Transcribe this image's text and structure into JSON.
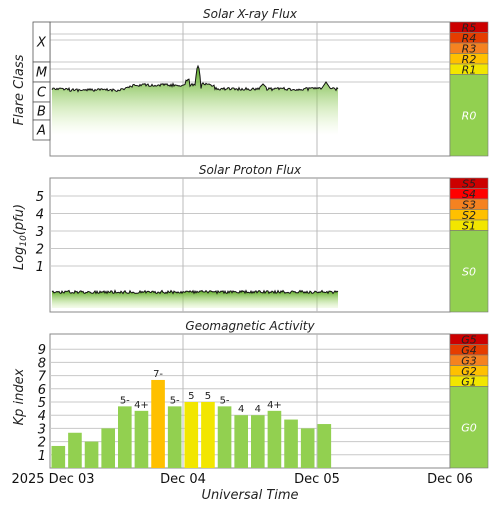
{
  "chart_data": [
    {
      "type": "area",
      "title": "Solar X-ray Flux",
      "ylabel": "Flare Class",
      "flare_classes": [
        "X",
        "M",
        "C",
        "B",
        "A"
      ],
      "scale": [
        {
          "label": "R5",
          "color": "#cc0000"
        },
        {
          "label": "R4",
          "color": "#e53d00"
        },
        {
          "label": "R3",
          "color": "#f58220"
        },
        {
          "label": "R2",
          "color": "#ffc000"
        },
        {
          "label": "R1",
          "color": "#f2e600"
        },
        {
          "label": "R0",
          "color": "#92d050"
        }
      ],
      "series_shape": "flux near low C-class throughout, brief M-class flare spike on Dec 04, small C-class bumps near Dec 05"
    },
    {
      "type": "area",
      "title": "Solar Proton Flux",
      "ylabel": "Log10(pfu)",
      "yticks": [
        "5",
        "4",
        "3",
        "2",
        "1"
      ],
      "ylim": [
        -2,
        6
      ],
      "scale": [
        {
          "label": "S5",
          "color": "#cc0000"
        },
        {
          "label": "S4",
          "color": "#ff0000"
        },
        {
          "label": "S3",
          "color": "#f58220"
        },
        {
          "label": "S2",
          "color": "#ffc000"
        },
        {
          "label": "S1",
          "color": "#f2e600"
        },
        {
          "label": "S0",
          "color": "#92d050"
        }
      ],
      "series_shape": "flat background below level 1"
    },
    {
      "type": "bar",
      "title": "Geomagnetic Activity",
      "ylabel": "Kp index",
      "xlabel": "Universal Time",
      "ylim": [
        0,
        10
      ],
      "yticks": [
        1,
        2,
        3,
        4,
        5,
        6,
        7,
        8,
        9
      ],
      "x_date_labels": [
        "2025 Dec 03",
        "Dec 04",
        "Dec 05",
        "Dec 06"
      ],
      "values": [
        1.67,
        2.67,
        2.0,
        3.0,
        4.67,
        4.33,
        6.67,
        4.67,
        5.0,
        5.0,
        4.67,
        4.0,
        4.0,
        4.33,
        3.67,
        3.0,
        3.33
      ],
      "labels": [
        "",
        "",
        "",
        "",
        "5-",
        "4+",
        "7-",
        "5-",
        "5",
        "5",
        "5-",
        "4",
        "4",
        "4+",
        "",
        "",
        ""
      ],
      "colors": {
        "quiet": "#92d050",
        "g1": "#f2e600",
        "g3": "#ffc000"
      },
      "scale": [
        {
          "label": "G5",
          "color": "#cc0000"
        },
        {
          "label": "G4",
          "color": "#e53d00"
        },
        {
          "label": "G3",
          "color": "#f58220"
        },
        {
          "label": "G2",
          "color": "#ffc000"
        },
        {
          "label": "G1",
          "color": "#f2e600"
        },
        {
          "label": "G0",
          "color": "#92d050"
        }
      ]
    }
  ]
}
